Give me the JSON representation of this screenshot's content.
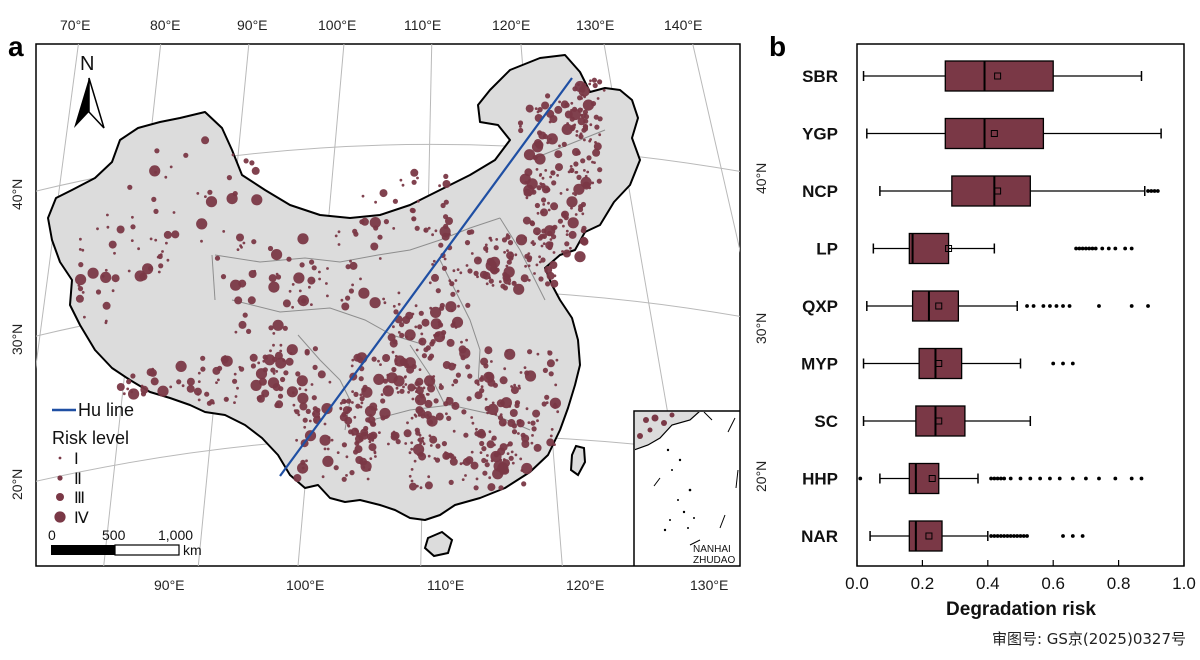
{
  "panel_a": {
    "label": "a",
    "north_label": "N",
    "lon_top": [
      "70°E",
      "80°E",
      "90°E",
      "100°E",
      "110°E",
      "120°E",
      "130°E",
      "140°E"
    ],
    "lon_bottom": [
      "90°E",
      "100°E",
      "110°E",
      "120°E",
      "130°E"
    ],
    "lat_left": [
      "40°N",
      "30°N",
      "20°N"
    ],
    "lat_right": [
      "40°N",
      "30°N",
      "20°N"
    ],
    "legend": {
      "hu_line": "Hu line",
      "risk_title": "Risk level",
      "levels": [
        "Ⅰ",
        "Ⅱ",
        "Ⅲ",
        "Ⅳ"
      ]
    },
    "scale_bar": {
      "ticks": [
        "0",
        "500",
        "1,000"
      ],
      "unit": "km"
    },
    "inset_label": [
      "NANHAI",
      "ZHUDAO"
    ],
    "colors": {
      "points": "#7a3846",
      "hu_line": "#1f4fa3",
      "land": "#dcdcdc"
    }
  },
  "panel_b": {
    "label": "b"
  },
  "approval_number": "审图号: GS京(2025)0327号",
  "chart_data": {
    "type": "box",
    "orientation": "horizontal",
    "xlabel": "Degradation  risk",
    "xlim": [
      0.0,
      1.0
    ],
    "xticks": [
      "0.0",
      "0.2",
      "0.4",
      "0.6",
      "0.8",
      "1.0"
    ],
    "box_color": "#7a3846",
    "categories": [
      "SBR",
      "YGP",
      "NCP",
      "LP",
      "QXP",
      "MYP",
      "SC",
      "HHP",
      "NAR"
    ],
    "series": [
      {
        "whisker_low": 0.02,
        "q1": 0.27,
        "median": 0.39,
        "q3": 0.6,
        "whisker_high": 0.87,
        "mean": 0.43,
        "outliers": []
      },
      {
        "whisker_low": 0.03,
        "q1": 0.27,
        "median": 0.39,
        "q3": 0.57,
        "whisker_high": 0.93,
        "mean": 0.42,
        "outliers": []
      },
      {
        "whisker_low": 0.07,
        "q1": 0.29,
        "median": 0.42,
        "q3": 0.53,
        "whisker_high": 0.88,
        "mean": 0.43,
        "outliers": [
          0.89,
          0.9,
          0.91,
          0.92
        ]
      },
      {
        "whisker_low": 0.05,
        "q1": 0.16,
        "median": 0.17,
        "q3": 0.28,
        "whisker_high": 0.42,
        "mean": 0.28,
        "outliers": [
          0.67,
          0.68,
          0.69,
          0.7,
          0.71,
          0.72,
          0.73,
          0.75,
          0.77,
          0.79,
          0.82,
          0.84
        ]
      },
      {
        "whisker_low": 0.03,
        "q1": 0.17,
        "median": 0.22,
        "q3": 0.31,
        "whisker_high": 0.49,
        "mean": 0.25,
        "outliers": [
          0.52,
          0.54,
          0.57,
          0.59,
          0.61,
          0.63,
          0.65,
          0.74,
          0.84,
          0.89
        ]
      },
      {
        "whisker_low": 0.02,
        "q1": 0.19,
        "median": 0.24,
        "q3": 0.32,
        "whisker_high": 0.5,
        "mean": 0.25,
        "outliers": [
          0.6,
          0.63,
          0.66
        ]
      },
      {
        "whisker_low": 0.02,
        "q1": 0.18,
        "median": 0.24,
        "q3": 0.33,
        "whisker_high": 0.53,
        "mean": 0.25,
        "outliers": []
      },
      {
        "whisker_low": 0.07,
        "q1": 0.16,
        "median": 0.18,
        "q3": 0.25,
        "whisker_high": 0.37,
        "mean": 0.23,
        "outliers": [
          0.01,
          0.41,
          0.42,
          0.43,
          0.44,
          0.45,
          0.47,
          0.5,
          0.53,
          0.56,
          0.59,
          0.62,
          0.66,
          0.7,
          0.74,
          0.79,
          0.84,
          0.87
        ]
      },
      {
        "whisker_low": 0.04,
        "q1": 0.16,
        "median": 0.18,
        "q3": 0.26,
        "whisker_high": 0.4,
        "mean": 0.22,
        "outliers": [
          0.41,
          0.42,
          0.43,
          0.44,
          0.45,
          0.46,
          0.47,
          0.48,
          0.49,
          0.5,
          0.51,
          0.52,
          0.63,
          0.66,
          0.69
        ]
      }
    ]
  }
}
